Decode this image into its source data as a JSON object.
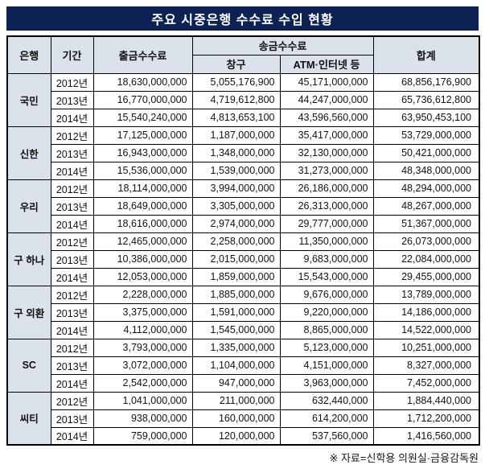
{
  "title": "주요 시중은행 수수료 수입 현황",
  "colors": {
    "title_bg": "#0d2153",
    "header_bg": "#dce2ec",
    "border": "#000000"
  },
  "headers": {
    "bank": "은행",
    "period": "기간",
    "withdrawal_fee": "출금수수료",
    "remittance_fee": "송금수수료",
    "counter": "창구",
    "atm_internet": "ATM·인터넷 등",
    "total": "합계"
  },
  "footer": {
    "source_note": "※ 자료=신학용 의원실·금융감독원"
  },
  "chart_data": {
    "type": "table",
    "title": "주요 시중은행 수수료 수입 현황",
    "columns": [
      "은행",
      "기간",
      "출금수수료",
      "송금수수료 창구",
      "송금수수료 ATM·인터넷 등",
      "합계"
    ],
    "groups": [
      {
        "bank": "국민",
        "rows": [
          {
            "period": "2012년",
            "withdrawal": "18,630,000,000",
            "counter": "5,055,176,900",
            "atm": "45,171,000,000",
            "total": "68,856,176,900"
          },
          {
            "period": "2013년",
            "withdrawal": "16,770,000,000",
            "counter": "4,719,612,800",
            "atm": "44,247,000,000",
            "total": "65,736,612,800"
          },
          {
            "period": "2014년",
            "withdrawal": "15,540,240,000",
            "counter": "4,813,653,100",
            "atm": "43,596,560,000",
            "total": "63,950,453,100"
          }
        ]
      },
      {
        "bank": "신한",
        "rows": [
          {
            "period": "2012년",
            "withdrawal": "17,125,000,000",
            "counter": "1,187,000,000",
            "atm": "35,417,000,000",
            "total": "53,729,000,000"
          },
          {
            "period": "2013년",
            "withdrawal": "16,943,000,000",
            "counter": "1,348,000,000",
            "atm": "32,130,000,000",
            "total": "50,421,000,000"
          },
          {
            "period": "2014년",
            "withdrawal": "15,536,000,000",
            "counter": "1,539,000,000",
            "atm": "31,273,000,000",
            "total": "48,348,000,000"
          }
        ]
      },
      {
        "bank": "우리",
        "rows": [
          {
            "period": "2012년",
            "withdrawal": "18,114,000,000",
            "counter": "3,994,000,000",
            "atm": "26,186,000,000",
            "total": "48,294,000,000"
          },
          {
            "period": "2013년",
            "withdrawal": "18,649,000,000",
            "counter": "3,305,000,000",
            "atm": "26,313,000,000",
            "total": "48,267,000,000"
          },
          {
            "period": "2014년",
            "withdrawal": "18,616,000,000",
            "counter": "2,974,000,000",
            "atm": "29,777,000,000",
            "total": "51,367,000,000"
          }
        ]
      },
      {
        "bank": "구 하나",
        "rows": [
          {
            "period": "2012년",
            "withdrawal": "12,465,000,000",
            "counter": "2,258,000,000",
            "atm": "11,350,000,000",
            "total": "26,073,000,000"
          },
          {
            "period": "2013년",
            "withdrawal": "10,386,000,000",
            "counter": "2,015,000,000",
            "atm": "9,683,000,000",
            "total": "22,084,000,000"
          },
          {
            "period": "2014년",
            "withdrawal": "12,053,000,000",
            "counter": "1,859,000,000",
            "atm": "15,543,000,000",
            "total": "29,455,000,000"
          }
        ]
      },
      {
        "bank": "구 외환",
        "rows": [
          {
            "period": "2012년",
            "withdrawal": "2,228,000,000",
            "counter": "1,885,000,000",
            "atm": "9,676,000,000",
            "total": "13,789,000,000"
          },
          {
            "period": "2013년",
            "withdrawal": "3,375,000,000",
            "counter": "1,591,000,000",
            "atm": "9,220,000,000",
            "total": "14,186,000,000"
          },
          {
            "period": "2014년",
            "withdrawal": "4,112,000,000",
            "counter": "1,545,000,000",
            "atm": "8,865,000,000",
            "total": "14,522,000,000"
          }
        ]
      },
      {
        "bank": "SC",
        "rows": [
          {
            "period": "2012년",
            "withdrawal": "3,793,000,000",
            "counter": "1,335,000,000",
            "atm": "5,123,000,000",
            "total": "10,251,000,000"
          },
          {
            "period": "2013년",
            "withdrawal": "3,072,000,000",
            "counter": "1,104,000,000",
            "atm": "4,151,000,000",
            "total": "8,327,000,000"
          },
          {
            "period": "2014년",
            "withdrawal": "2,542,000,000",
            "counter": "947,000,000",
            "atm": "3,963,000,000",
            "total": "7,452,000,000"
          }
        ]
      },
      {
        "bank": "씨티",
        "rows": [
          {
            "period": "2012년",
            "withdrawal": "1,041,000,000",
            "counter": "211,000,000",
            "atm": "632,440,000",
            "total": "1,884,440,000"
          },
          {
            "period": "2013년",
            "withdrawal": "938,000,000",
            "counter": "160,000,000",
            "atm": "614,200,000",
            "total": "1,712,200,000"
          },
          {
            "period": "2014년",
            "withdrawal": "759,000,000",
            "counter": "120,000,000",
            "atm": "537,560,000",
            "total": "1,416,560,000"
          }
        ]
      }
    ]
  }
}
